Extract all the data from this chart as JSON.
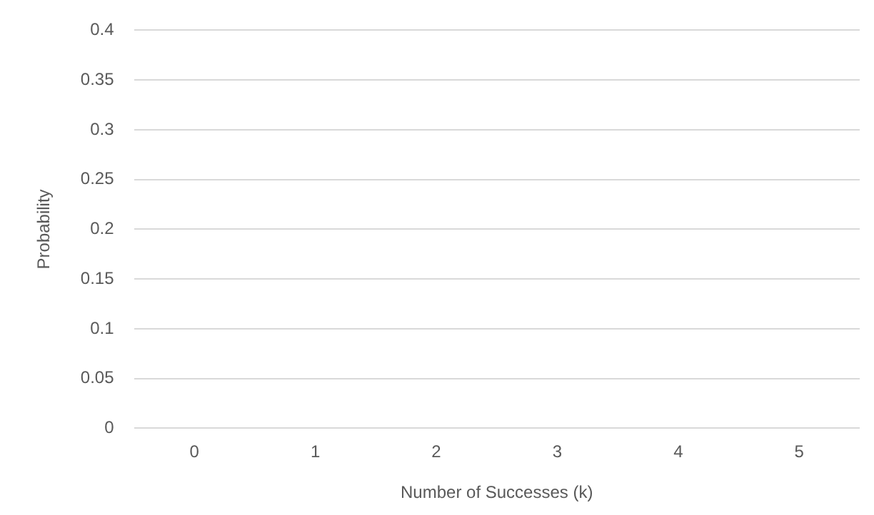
{
  "chart_data": {
    "type": "bar",
    "xlabel": "Number of Successes (k)",
    "ylabel": "Probability",
    "categories": [
      "0",
      "1",
      "2",
      "3",
      "4",
      "5"
    ],
    "values": [
      null,
      null,
      null,
      null,
      null,
      null
    ],
    "ylim": [
      0,
      0.4
    ],
    "yticks": [
      0,
      0.05,
      0.1,
      0.15,
      0.2,
      0.25,
      0.3,
      0.35,
      0.4
    ],
    "grid": "y",
    "legend": false
  }
}
